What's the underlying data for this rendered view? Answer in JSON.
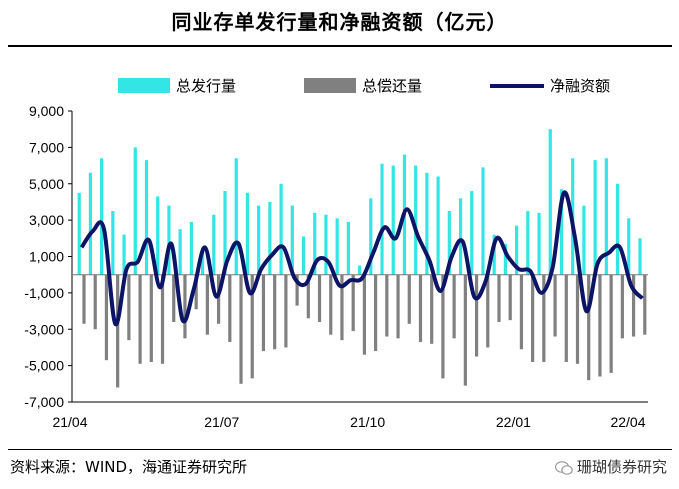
{
  "chart_data": {
    "type": "bar+line",
    "title": "同业存单发行量和净融资额（亿元）",
    "xlabel": "",
    "ylabel": "",
    "ylim": [
      -7000,
      9000
    ],
    "yticks": [
      9000,
      7000,
      5000,
      3000,
      1000,
      -1000,
      -3000,
      -5000,
      -7000
    ],
    "ytick_labels": [
      "9,000",
      "7,000",
      "5,000",
      "3,000",
      "1,000",
      "-1,000",
      "-3,000",
      "-5,000",
      "-7,000"
    ],
    "xtick_labels": [
      "21/04",
      "21/07",
      "21/10",
      "22/01",
      "22/04"
    ],
    "series": [
      {
        "name": "总发行量",
        "kind": "bar",
        "color": "#33E6E6",
        "values": [
          4500,
          5600,
          6400,
          3500,
          2200,
          7000,
          6300,
          4300,
          3800,
          2500,
          2900,
          1500,
          3300,
          4600,
          6400,
          4500,
          3800,
          4000,
          5000,
          3800,
          2100,
          3400,
          3300,
          3100,
          2900,
          500,
          4200,
          6100,
          6000,
          6600,
          6000,
          5600,
          5400,
          3500,
          4200,
          4600,
          5900,
          2200,
          1700,
          2700,
          3500,
          3400,
          8000,
          4700,
          6400,
          3800,
          6300,
          6400,
          5000,
          3100,
          2000
        ],
        "dates_note": "approx. weekly, 2021-04 to 2022-04"
      },
      {
        "name": "总偿还量",
        "kind": "bar",
        "color": "#808080",
        "values": [
          -2700,
          -3000,
          -4700,
          -6200,
          -3600,
          -4900,
          -4800,
          -4900,
          -2600,
          -3500,
          -1900,
          -3300,
          -2700,
          -3700,
          -6000,
          -5700,
          -4200,
          -4100,
          -4000,
          -1700,
          -2400,
          -2600,
          -3300,
          -3600,
          -3100,
          -4400,
          -4200,
          -3400,
          -3500,
          -2700,
          -3700,
          -3800,
          -5700,
          -3500,
          -6100,
          -4500,
          -4000,
          -2600,
          -2500,
          -4100,
          -4800,
          -4800,
          -3400,
          -4800,
          -4900,
          -5800,
          -5600,
          -5400,
          -3500,
          -3400,
          -3300
        ]
      },
      {
        "name": "净融资额",
        "kind": "line",
        "color": "#0D1466",
        "values": [
          1500,
          2400,
          2500,
          -2700,
          300,
          700,
          1900,
          -700,
          1700,
          -2500,
          -800,
          1500,
          -1200,
          800,
          1700,
          -1000,
          300,
          1100,
          1500,
          -200,
          -500,
          800,
          700,
          -600,
          -300,
          -200,
          1200,
          2600,
          2000,
          3600,
          2100,
          800,
          -900,
          1000,
          1800,
          -1200,
          -400,
          2000,
          1000,
          300,
          200,
          -1000,
          400,
          4500,
          2000,
          -2000,
          600,
          1200,
          1500,
          -600,
          -1300
        ]
      }
    ],
    "legend": [
      "总发行量",
      "总偿还量",
      "净融资额"
    ]
  },
  "footer": {
    "source": "资料来源：WIND，海通证券研究所",
    "brand": "珊瑚债券研究"
  },
  "icons": [
    "wechat-icon"
  ]
}
